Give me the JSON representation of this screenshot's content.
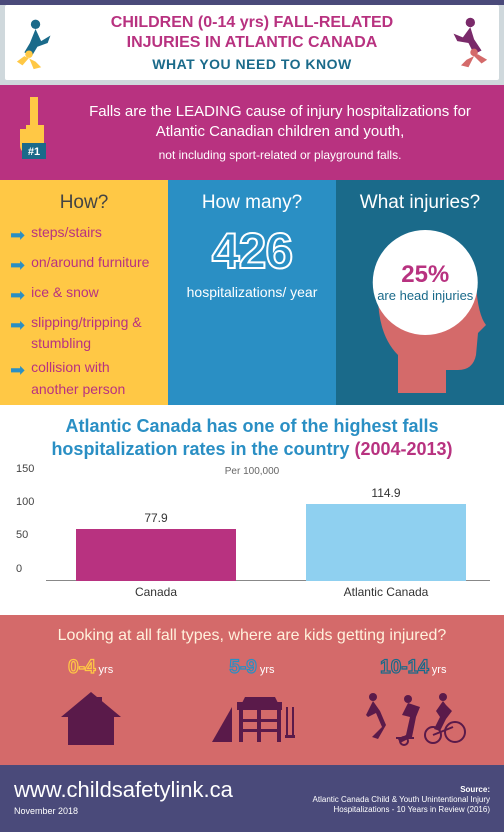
{
  "header": {
    "title_line1": "CHILDREN (0-14 yrs) FALL-RELATED",
    "title_line2": "INJURIES  IN ATLANTIC CANADA",
    "subtitle": "WHAT YOU NEED TO KNOW"
  },
  "lead": {
    "main": "Falls are the LEADING cause of injury hospitalizations for Atlantic Canadian children and youth,",
    "small": "not including sport-related or playground falls.",
    "badge": "#1"
  },
  "how": {
    "heading": "How?",
    "items": [
      "steps/stairs",
      "on/around furniture",
      "ice & snow",
      "slipping/tripping & stumbling",
      "collision with another person"
    ]
  },
  "many": {
    "heading": "How many?",
    "value": "426",
    "sub": "hospitalizations/ year"
  },
  "inj": {
    "heading": "What injuries?",
    "pct": "25%",
    "sub": "are head injuries"
  },
  "chart": {
    "title_a": "Atlantic Canada has one of the highest falls hospitalization rates in the country ",
    "title_b": "(2004-2013)",
    "per": "Per 100,000",
    "ylim": [
      0,
      150
    ],
    "ytick_step": 50,
    "yticks": [
      "0",
      "50",
      "100",
      "150"
    ],
    "bars": [
      {
        "cat": "Canada",
        "val": 77.9,
        "label": "77.9",
        "color": "#b83280"
      },
      {
        "cat": "Atlantic Canada",
        "val": 114.9,
        "label": "114.9",
        "color": "#8fd0f0"
      }
    ]
  },
  "where": {
    "heading": "Looking at all fall types, where are kids getting injured?",
    "groups": [
      {
        "age": "0-4",
        "yrs": "yrs"
      },
      {
        "age": "5-9",
        "yrs": "yrs"
      },
      {
        "age": "10-14",
        "yrs": "yrs"
      }
    ]
  },
  "footer": {
    "url": "www.childsafetylink.ca",
    "date": "November 2018",
    "src_label": "Source:",
    "src1": "Atlantic Canada Child & Youth Unintentional Injury",
    "src2": "Hospitalizations - 10 Years in Review (2016)"
  },
  "colors": {
    "pink": "#b83280",
    "yellow": "#ffc845",
    "blue": "#2a8fc4",
    "teal": "#1a6a8a",
    "salmon": "#d46a6a",
    "purple": "#4a4a7a"
  }
}
